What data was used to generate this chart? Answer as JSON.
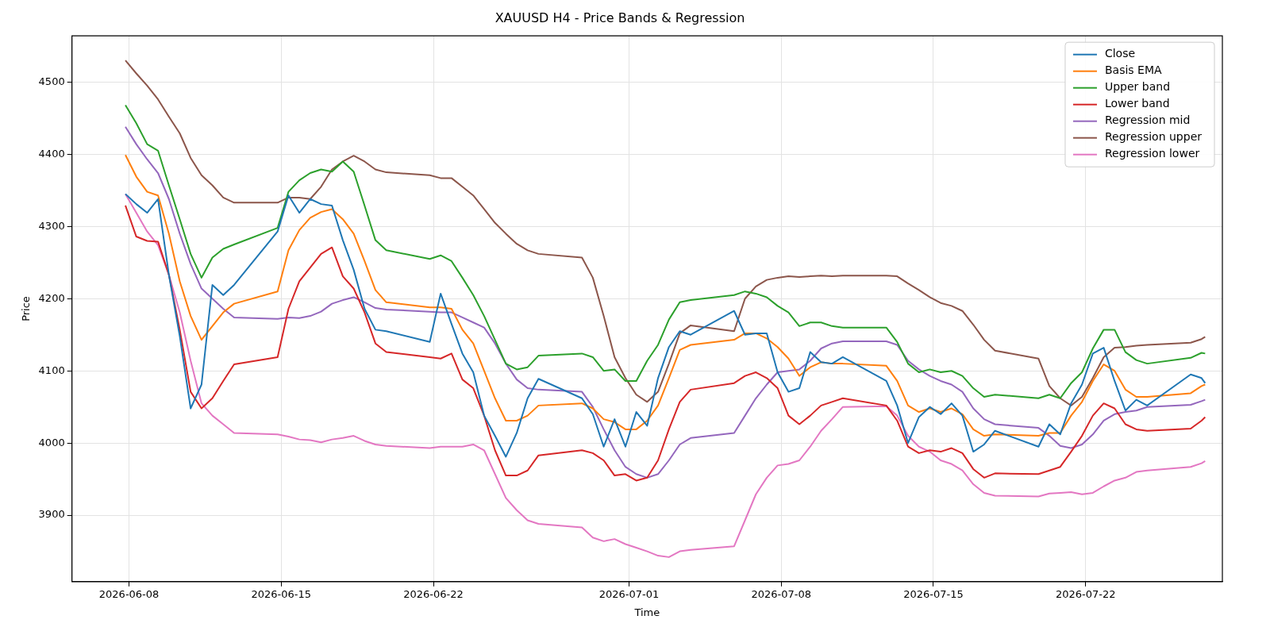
{
  "chart_data": {
    "type": "line",
    "title": "XAUUSD H4 - Price Bands & Regression",
    "xlabel": "Time",
    "ylabel": "Price",
    "x": [
      "2026-06-07T20:00",
      "2026-06-08T08:00",
      "2026-06-08T20:00",
      "2026-06-09T08:00",
      "2026-06-09T20:00",
      "2026-06-10T08:00",
      "2026-06-10T20:00",
      "2026-06-11T08:00",
      "2026-06-11T20:00",
      "2026-06-12T08:00",
      "2026-06-12T20:00",
      "2026-06-14T20:00",
      "2026-06-15T08:00",
      "2026-06-15T20:00",
      "2026-06-16T08:00",
      "2026-06-16T20:00",
      "2026-06-17T08:00",
      "2026-06-17T20:00",
      "2026-06-18T08:00",
      "2026-06-18T20:00",
      "2026-06-19T08:00",
      "2026-06-19T20:00",
      "2026-06-21T20:00",
      "2026-06-22T08:00",
      "2026-06-22T20:00",
      "2026-06-23T08:00",
      "2026-06-23T20:00",
      "2026-06-24T08:00",
      "2026-06-24T20:00",
      "2026-06-25T08:00",
      "2026-06-25T20:00",
      "2026-06-26T08:00",
      "2026-06-26T20:00",
      "2026-06-28T20:00",
      "2026-06-29T08:00",
      "2026-06-29T20:00",
      "2026-06-30T08:00",
      "2026-06-30T20:00",
      "2026-07-01T08:00",
      "2026-07-01T20:00",
      "2026-07-02T08:00",
      "2026-07-02T20:00",
      "2026-07-03T08:00",
      "2026-07-03T20:00",
      "2026-07-05T20:00",
      "2026-07-06T08:00",
      "2026-07-06T20:00",
      "2026-07-07T08:00",
      "2026-07-07T20:00",
      "2026-07-08T08:00",
      "2026-07-08T20:00",
      "2026-07-09T08:00",
      "2026-07-09T20:00",
      "2026-07-10T08:00",
      "2026-07-10T20:00",
      "2026-07-12T20:00",
      "2026-07-13T08:00",
      "2026-07-13T20:00",
      "2026-07-14T08:00",
      "2026-07-14T20:00",
      "2026-07-15T08:00",
      "2026-07-15T20:00",
      "2026-07-16T08:00",
      "2026-07-16T20:00",
      "2026-07-17T08:00",
      "2026-07-17T20:00",
      "2026-07-19T20:00",
      "2026-07-20T08:00",
      "2026-07-20T20:00",
      "2026-07-21T08:00",
      "2026-07-21T20:00",
      "2026-07-22T08:00",
      "2026-07-22T20:00",
      "2026-07-23T08:00",
      "2026-07-23T20:00",
      "2026-07-24T08:00",
      "2026-07-24T20:00",
      "2026-07-26T20:00",
      "2026-07-27T08:00",
      "2026-07-27T12:00"
    ],
    "series": [
      {
        "name": "Close",
        "color": "#1f77b4",
        "values": [
          4345,
          4331,
          4319,
          4338,
          4233,
          4148,
          4048,
          4081,
          4219,
          4205,
          4219,
          4293,
          4343,
          4319,
          4338,
          4331,
          4329,
          4281,
          4240,
          4186,
          4157,
          4155,
          4140,
          4207,
          4165,
          4124,
          4098,
          4038,
          4010,
          3981,
          4014,
          4062,
          4089,
          4062,
          4040,
          3995,
          4033,
          3995,
          4043,
          4024,
          4090,
          4133,
          4155,
          4150,
          4183,
          4150,
          4152,
          4152,
          4098,
          4071,
          4076,
          4126,
          4112,
          4110,
          4119,
          4086,
          4052,
          4000,
          4036,
          4050,
          4040,
          4055,
          4038,
          3988,
          3998,
          4017,
          3995,
          4026,
          4012,
          4055,
          4081,
          4124,
          4132,
          4086,
          4045,
          4060,
          4052,
          4095,
          4090,
          4083
        ]
      },
      {
        "name": "Basis EMA",
        "color": "#ff7f0e",
        "values": [
          4399,
          4369,
          4348,
          4343,
          4290,
          4224,
          4176,
          4143,
          4162,
          4181,
          4193,
          4210,
          4267,
          4295,
          4312,
          4320,
          4324,
          4310,
          4290,
          4252,
          4212,
          4195,
          4188,
          4188,
          4186,
          4157,
          4138,
          4100,
          4062,
          4031,
          4031,
          4038,
          4052,
          4055,
          4048,
          4033,
          4029,
          4019,
          4019,
          4031,
          4052,
          4090,
          4129,
          4136,
          4143,
          4152,
          4152,
          4145,
          4133,
          4117,
          4093,
          4105,
          4112,
          4110,
          4110,
          4107,
          4086,
          4052,
          4043,
          4048,
          4043,
          4048,
          4040,
          4019,
          4010,
          4012,
          4010,
          4014,
          4014,
          4038,
          4057,
          4086,
          4109,
          4100,
          4074,
          4064,
          4064,
          4069,
          4079,
          4081
        ]
      },
      {
        "name": "Upper band",
        "color": "#2ca02c",
        "values": [
          4468,
          4443,
          4414,
          4405,
          4357,
          4310,
          4262,
          4229,
          4257,
          4269,
          4275,
          4298,
          4348,
          4364,
          4374,
          4379,
          4376,
          4390,
          4376,
          4329,
          4281,
          4267,
          4255,
          4260,
          4252,
          4229,
          4205,
          4176,
          4143,
          4110,
          4102,
          4105,
          4121,
          4124,
          4119,
          4100,
          4102,
          4086,
          4086,
          4114,
          4136,
          4171,
          4195,
          4198,
          4205,
          4210,
          4207,
          4202,
          4190,
          4181,
          4162,
          4167,
          4167,
          4162,
          4160,
          4160,
          4140,
          4110,
          4098,
          4102,
          4098,
          4100,
          4093,
          4076,
          4064,
          4067,
          4062,
          4067,
          4062,
          4083,
          4098,
          4131,
          4157,
          4157,
          4126,
          4115,
          4110,
          4118,
          4125,
          4124
        ]
      },
      {
        "name": "Lower band",
        "color": "#d62728",
        "values": [
          4329,
          4286,
          4280,
          4279,
          4233,
          4157,
          4071,
          4048,
          4062,
          4086,
          4109,
          4119,
          4186,
          4224,
          4243,
          4262,
          4271,
          4231,
          4214,
          4181,
          4138,
          4126,
          4119,
          4117,
          4124,
          4088,
          4076,
          4038,
          3990,
          3955,
          3955,
          3962,
          3983,
          3990,
          3986,
          3976,
          3955,
          3957,
          3948,
          3952,
          3976,
          4019,
          4057,
          4074,
          4083,
          4093,
          4098,
          4090,
          4076,
          4038,
          4026,
          4038,
          4052,
          4057,
          4062,
          4052,
          4031,
          3995,
          3986,
          3990,
          3988,
          3993,
          3986,
          3964,
          3952,
          3958,
          3957,
          3962,
          3967,
          3988,
          4010,
          4038,
          4055,
          4048,
          4026,
          4019,
          4017,
          4020,
          4031,
          4036
        ]
      },
      {
        "name": "Regression mid",
        "color": "#9467bd",
        "values": [
          4438,
          4414,
          4393,
          4374,
          4338,
          4290,
          4248,
          4214,
          4200,
          4186,
          4174,
          4172,
          4174,
          4173,
          4176,
          4182,
          4193,
          4198,
          4202,
          4195,
          4187,
          4185,
          4182,
          4181,
          4181,
          4174,
          4167,
          4160,
          4138,
          4110,
          4088,
          4076,
          4074,
          4071,
          4050,
          4019,
          3990,
          3967,
          3957,
          3952,
          3957,
          3976,
          3998,
          4007,
          4014,
          4038,
          4062,
          4081,
          4098,
          4100,
          4102,
          4114,
          4131,
          4138,
          4141,
          4141,
          4136,
          4114,
          4102,
          4093,
          4086,
          4081,
          4071,
          4048,
          4033,
          4026,
          4021,
          4010,
          3996,
          3993,
          3998,
          4012,
          4031,
          4040,
          4043,
          4045,
          4050,
          4053,
          4058,
          4060
        ]
      },
      {
        "name": "Regression upper",
        "color": "#8c564b",
        "values": [
          4530,
          4512,
          4495,
          4476,
          4452,
          4429,
          4395,
          4371,
          4357,
          4340,
          4333,
          4333,
          4340,
          4340,
          4338,
          4355,
          4379,
          4390,
          4398,
          4390,
          4379,
          4375,
          4371,
          4367,
          4367,
          4355,
          4343,
          4324,
          4305,
          4290,
          4276,
          4267,
          4262,
          4257,
          4229,
          4176,
          4119,
          4090,
          4067,
          4057,
          4071,
          4110,
          4152,
          4163,
          4155,
          4200,
          4217,
          4226,
          4229,
          4231,
          4230,
          4231,
          4232,
          4231,
          4232,
          4232,
          4231,
          4221,
          4212,
          4202,
          4194,
          4190,
          4183,
          4164,
          4143,
          4128,
          4117,
          4079,
          4062,
          4052,
          4064,
          4090,
          4119,
          4132,
          4133,
          4135,
          4136,
          4139,
          4144,
          4147
        ]
      },
      {
        "name": "Regression lower",
        "color": "#e377c2",
        "values": [
          4345,
          4319,
          4293,
          4274,
          4233,
          4181,
          4114,
          4055,
          4038,
          4026,
          4014,
          4012,
          4009,
          4005,
          4004,
          4001,
          4005,
          4007,
          4010,
          4003,
          3998,
          3996,
          3993,
          3995,
          3995,
          3995,
          3998,
          3990,
          3957,
          3924,
          3907,
          3893,
          3888,
          3883,
          3869,
          3864,
          3867,
          3860,
          3855,
          3850,
          3844,
          3842,
          3850,
          3852,
          3857,
          3893,
          3929,
          3952,
          3969,
          3971,
          3976,
          3995,
          4017,
          4033,
          4050,
          4051,
          4038,
          4010,
          3995,
          3988,
          3976,
          3971,
          3962,
          3943,
          3931,
          3927,
          3926,
          3930,
          3931,
          3932,
          3929,
          3931,
          3940,
          3948,
          3952,
          3960,
          3962,
          3967,
          3972,
          3975
        ]
      }
    ],
    "xlim": [
      "2026-06-05T09:00",
      "2026-07-28T07:00"
    ],
    "xticks": [
      "2026-06-08",
      "2026-06-15",
      "2026-06-22",
      "2026-07-01",
      "2026-07-08",
      "2026-07-15",
      "2026-07-22"
    ],
    "ylim": [
      3808,
      4564
    ],
    "yticks": [
      3900,
      4000,
      4100,
      4200,
      4300,
      4400,
      4500
    ],
    "grid": true,
    "legend": "top right"
  }
}
